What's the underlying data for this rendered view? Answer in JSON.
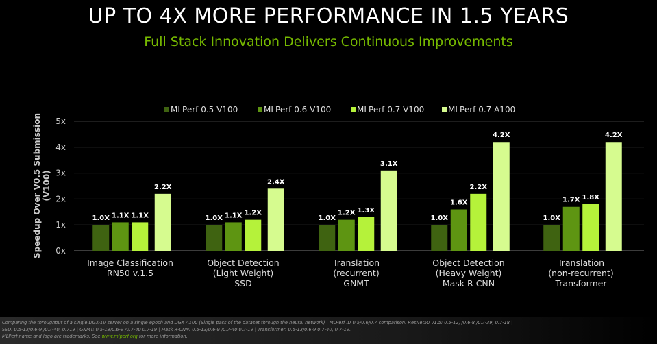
{
  "chart_data": {
    "type": "bar",
    "title": "UP TO 4X MORE PERFORMANCE IN 1.5 YEARS",
    "subtitle": "Full Stack Innovation Delivers Continuous Improvements",
    "ylabel": "Speedup Over V0.5 Submission (V100)",
    "xlabel": "",
    "ylim": [
      0,
      5
    ],
    "yticks": [
      "0x",
      "1x",
      "2x",
      "3x",
      "4x",
      "5x"
    ],
    "grid": true,
    "legend_position": "top",
    "categories": [
      [
        "Image Classification",
        "RN50 v.1.5"
      ],
      [
        "Object Detection",
        "(Light Weight)",
        "SSD"
      ],
      [
        "Translation",
        "(recurrent)",
        "GNMT"
      ],
      [
        "Object Detection",
        "(Heavy Weight)",
        "Mask R-CNN"
      ],
      [
        "Translation",
        "(non-recurrent)",
        "Transformer"
      ]
    ],
    "series": [
      {
        "name": "MLPerf 0.5 V100",
        "color": "#3f6311",
        "values": [
          1.0,
          1.0,
          1.0,
          1.0,
          1.0
        ],
        "labels": [
          "1.0X",
          "1.0X",
          "1.0X",
          "1.0X",
          "1.0X"
        ]
      },
      {
        "name": "MLPerf 0.6 V100",
        "color": "#5e9512",
        "values": [
          1.1,
          1.1,
          1.2,
          1.6,
          1.7
        ],
        "labels": [
          "1.1X",
          "1.1X",
          "1.2X",
          "1.6X",
          "1.7X"
        ]
      },
      {
        "name": "MLPerf 0.7 V100",
        "color": "#b5f23a",
        "values": [
          1.1,
          1.2,
          1.3,
          2.2,
          1.8
        ],
        "labels": [
          "1.1X",
          "1.2X",
          "1.3X",
          "2.2X",
          "1.8X"
        ]
      },
      {
        "name": "MLPerf 0.7 A100",
        "color": "#d6fb8f",
        "values": [
          2.2,
          2.4,
          3.1,
          4.2,
          4.2
        ],
        "labels": [
          "2.2X",
          "2.4X",
          "3.1X",
          "4.2X",
          "4.2X"
        ]
      }
    ]
  },
  "footer": {
    "line1": "Comparing the throughput of a single DGX-1V server on a single epoch and DGX A100 (Single pass of the dataset through the neural network) | MLPerf ID 0.5/0.6/0.7 comparison: ResNet50 v1.5: 0.5-12, /0.6-8 /0.7-39, 0.7-18  |",
    "line2": "SSD: 0.5-13/0.6-9 /0.7-40, 0.719 |  GNMT: 0.5-13/0.6-9 /0.7-40 0.7-19  |  Mask R-CNN: 0.5-13/0.6-9 /0.7-40 0.7-19 | Transformer: 0.5-13/0.6-9 0.7-40, 0.7-19.",
    "line3_pre": "MLPerf name and logo are trademarks. See ",
    "link": "www.mlperf.org",
    "line3_post": " for more information."
  }
}
